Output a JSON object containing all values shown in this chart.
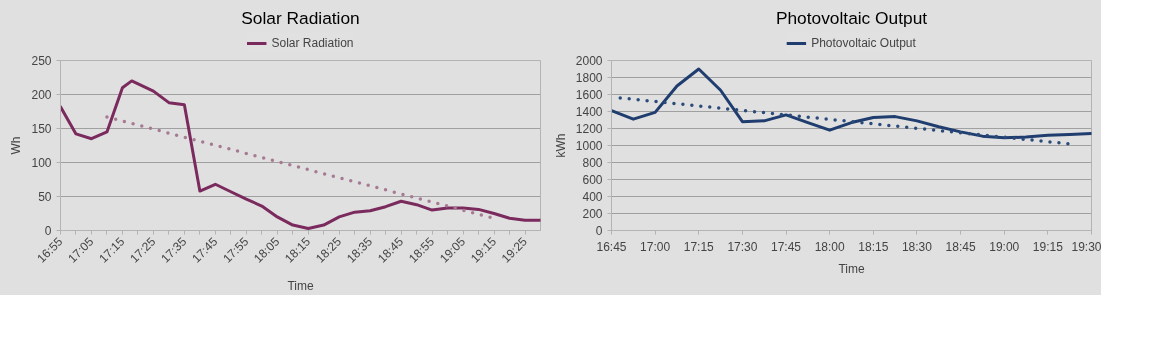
{
  "chart_data": [
    {
      "type": "line",
      "title": "Solar Radiation",
      "xlabel": "Time",
      "ylabel": "Wh",
      "x": [
        16.916667,
        17.0,
        17.083333,
        17.166667,
        17.25,
        17.3,
        17.416667,
        17.5,
        17.583333,
        17.666667,
        17.75,
        17.833333,
        17.916667,
        18.0,
        18.083333,
        18.166667,
        18.25,
        18.333333,
        18.416667,
        18.5,
        18.583333,
        18.666667,
        18.75,
        18.833333,
        18.916667,
        19.0,
        19.083333,
        19.166667,
        19.25,
        19.333333,
        19.416667,
        19.5
      ],
      "series": [
        {
          "name": "Solar Radiation",
          "color": "#7b2a5e",
          "values": [
            182,
            142,
            135,
            145,
            210,
            220,
            205,
            188,
            185,
            58,
            68,
            57,
            46,
            36,
            20,
            8,
            3,
            8,
            20,
            27,
            29,
            35,
            43,
            38,
            30,
            33,
            33,
            31,
            25,
            18,
            15,
            15
          ]
        },
        {
          "type": "line",
          "color": "#a67a93",
          "line_style": "dotted",
          "x": [
            17.166667,
            19.25
          ],
          "values": [
            167,
            18
          ]
        }
      ],
      "xlim": [
        16.916667,
        19.5
      ],
      "ylim": [
        0,
        250
      ],
      "yticks": [
        0,
        50,
        100,
        150,
        200,
        250
      ],
      "xticks": [
        {
          "value": 16.916667,
          "label": "16:55"
        },
        {
          "value": 17.0,
          "label": null
        },
        {
          "value": 17.083333,
          "label": "17:05"
        },
        {
          "value": 17.166667,
          "label": null
        },
        {
          "value": 17.25,
          "label": "17:15"
        },
        {
          "value": 17.333333,
          "label": null
        },
        {
          "value": 17.416667,
          "label": "17:25"
        },
        {
          "value": 17.5,
          "label": null
        },
        {
          "value": 17.583333,
          "label": "17:35"
        },
        {
          "value": 17.666667,
          "label": null
        },
        {
          "value": 17.75,
          "label": "17:45"
        },
        {
          "value": 17.833333,
          "label": null
        },
        {
          "value": 17.916667,
          "label": "17:55"
        },
        {
          "value": 18.0,
          "label": null
        },
        {
          "value": 18.083333,
          "label": "18:05"
        },
        {
          "value": 18.166667,
          "label": null
        },
        {
          "value": 18.25,
          "label": "18:15"
        },
        {
          "value": 18.333333,
          "label": null
        },
        {
          "value": 18.416667,
          "label": "18:25"
        },
        {
          "value": 18.5,
          "label": null
        },
        {
          "value": 18.583333,
          "label": "18:35"
        },
        {
          "value": 18.666667,
          "label": null
        },
        {
          "value": 18.75,
          "label": "18:45"
        },
        {
          "value": 18.833333,
          "label": null
        },
        {
          "value": 18.916667,
          "label": "18:55"
        },
        {
          "value": 19.0,
          "label": null
        },
        {
          "value": 19.083333,
          "label": "19:05"
        },
        {
          "value": 19.166667,
          "label": null
        },
        {
          "value": 19.25,
          "label": "19:15"
        },
        {
          "value": 19.333333,
          "label": null
        },
        {
          "value": 19.416667,
          "label": "19:25"
        }
      ],
      "grid": "y",
      "legend": "top",
      "marker": "none",
      "line_style": "solid"
    },
    {
      "type": "line",
      "title": "Photovoltaic Output",
      "xlabel": "Time",
      "ylabel": "kWh",
      "x": [
        16.75,
        16.875,
        17.0,
        17.125,
        17.25,
        17.375,
        17.5,
        17.625,
        17.75,
        17.875,
        18.0,
        18.125,
        18.25,
        18.375,
        18.5,
        18.625,
        18.75,
        18.875,
        19.0,
        19.125,
        19.25,
        19.375,
        19.5
      ],
      "series": [
        {
          "name": "Photovoltaic Output",
          "color": "#1f3d6e",
          "values": [
            1410,
            1310,
            1390,
            1700,
            1900,
            1650,
            1280,
            1290,
            1360,
            1270,
            1180,
            1270,
            1330,
            1340,
            1290,
            1220,
            1160,
            1110,
            1090,
            1100,
            1120,
            1130,
            1140
          ]
        },
        {
          "type": "line",
          "color": "#2a4a7a",
          "line_style": "dotted",
          "x": [
            16.8,
            19.366667
          ],
          "values": [
            1560,
            1020
          ]
        }
      ],
      "xlim": [
        16.75,
        19.5
      ],
      "ylim": [
        0,
        2000
      ],
      "yticks": [
        0,
        200,
        400,
        600,
        800,
        1000,
        1200,
        1400,
        1600,
        1800,
        2000
      ],
      "xticks": [
        {
          "value": 16.75,
          "label": "16:45"
        },
        {
          "value": 17.0,
          "label": "17:00"
        },
        {
          "value": 17.25,
          "label": "17:15"
        },
        {
          "value": 17.5,
          "label": "17:30"
        },
        {
          "value": 17.75,
          "label": "17:45"
        },
        {
          "value": 18.0,
          "label": "18:00"
        },
        {
          "value": 18.25,
          "label": "18:15"
        },
        {
          "value": 18.5,
          "label": "18:30"
        },
        {
          "value": 18.75,
          "label": "18:45"
        },
        {
          "value": 19.0,
          "label": "19:00"
        },
        {
          "value": 19.25,
          "label": "19:15"
        },
        {
          "value": 19.5,
          "label": "19:30"
        }
      ],
      "grid": "y",
      "legend": "top",
      "marker": "none",
      "line_style": "solid"
    }
  ]
}
